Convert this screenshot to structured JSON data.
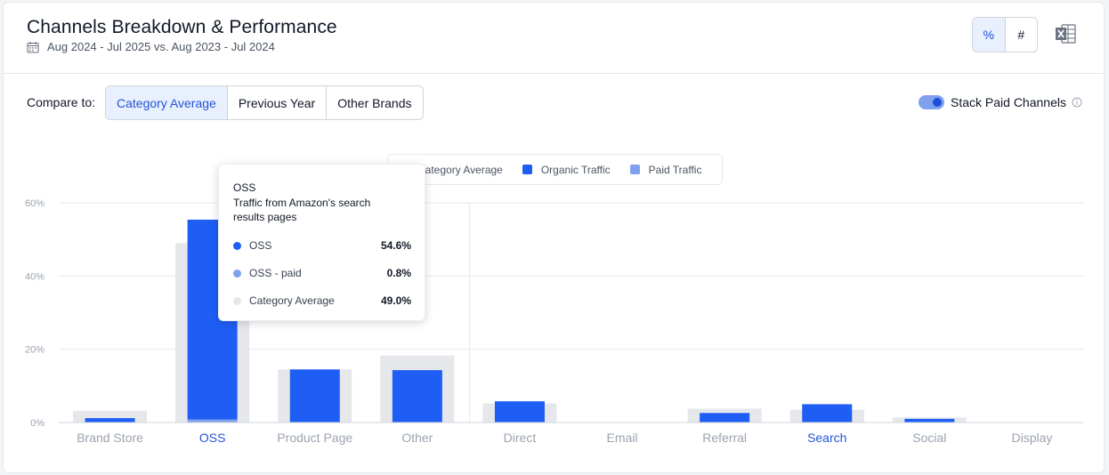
{
  "header": {
    "title": "Channels Breakdown & Performance",
    "date_range": "Aug 2024 - Jul 2025 vs. Aug 2023 - Jul 2024",
    "unit_toggle": [
      {
        "label": "%",
        "active": true
      },
      {
        "label": "#",
        "active": false
      }
    ],
    "export_icon": "excel-icon"
  },
  "controls": {
    "compare_label": "Compare to:",
    "compare_options": [
      {
        "label": "Category Average",
        "active": true
      },
      {
        "label": "Previous Year",
        "active": false
      },
      {
        "label": "Other Brands",
        "active": false
      }
    ],
    "stack_toggle": {
      "label": "Stack Paid Channels",
      "on": true
    }
  },
  "colors": {
    "organic": "#1f5ef4",
    "paid": "#7fa1ee",
    "category_average": "#e5e7eb",
    "accent": "#2355d8"
  },
  "legend": [
    {
      "label": "Category Average",
      "color": "#e5e7eb"
    },
    {
      "label": "Organic Traffic",
      "color": "#1f5ef4"
    },
    {
      "label": "Paid Traffic",
      "color": "#7fa1ee"
    }
  ],
  "tooltip": {
    "title": "OSS",
    "description": "Traffic from Amazon's search results pages",
    "rows": [
      {
        "label": "OSS",
        "value": "54.6%",
        "color": "#1f5ef4"
      },
      {
        "label": "OSS - paid",
        "value": "0.8%",
        "color": "#7fa1ee"
      },
      {
        "label": "Category Average",
        "value": "49.0%",
        "color": "#e5e7eb"
      }
    ]
  },
  "chart_data": {
    "type": "bar",
    "categories": [
      "Brand Store",
      "OSS",
      "Product Page",
      "Other",
      "Direct",
      "Email",
      "Referral",
      "Search",
      "Social",
      "Display"
    ],
    "highlighted_categories": [
      "OSS",
      "Search"
    ],
    "y_ticks": [
      "0%",
      "20%",
      "40%",
      "60%"
    ],
    "ylim": [
      0,
      60
    ],
    "grid": true,
    "series": [
      {
        "name": "Category Average",
        "values": [
          3.2,
          49.0,
          14.5,
          18.3,
          5.2,
          0,
          3.8,
          3.5,
          1.4,
          0
        ]
      },
      {
        "name": "Organic Traffic",
        "values": [
          1.2,
          54.6,
          14.5,
          14.3,
          5.8,
          0,
          2.6,
          5.0,
          1.0,
          0
        ]
      },
      {
        "name": "Paid Traffic",
        "values": [
          0,
          0.8,
          0,
          0,
          0,
          0,
          0,
          0,
          0,
          0
        ]
      }
    ]
  }
}
